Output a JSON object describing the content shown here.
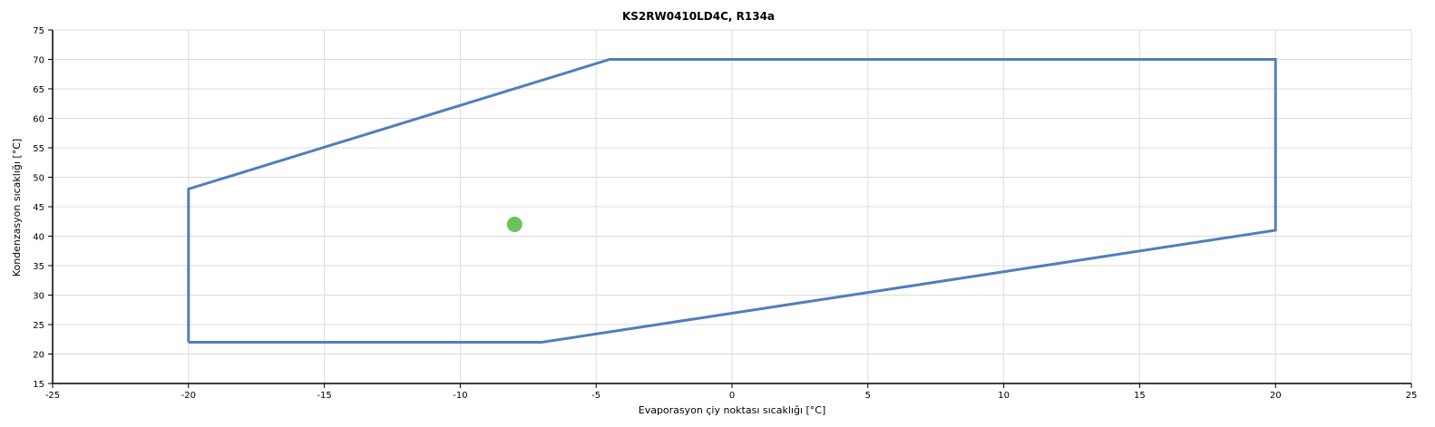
{
  "chart_data": {
    "type": "line",
    "title": "KS2RW0410LD4C, R134a",
    "xlabel": "Evaporasyon çiy noktası sıcaklığı [°C]",
    "ylabel": "Kondenzasyon sıcaklığı [°C]",
    "xlim": [
      -25,
      25
    ],
    "ylim": [
      15,
      75
    ],
    "xticks": [
      -25,
      -20,
      -15,
      -10,
      -5,
      0,
      5,
      10,
      15,
      20,
      25
    ],
    "yticks": [
      15,
      20,
      25,
      30,
      35,
      40,
      45,
      50,
      55,
      60,
      65,
      70,
      75
    ],
    "grid": true,
    "series": [
      {
        "kind": "envelope",
        "color": "#4f7fbc",
        "x": [
          -20,
          -20,
          -4.5,
          20,
          20,
          -7,
          -20
        ],
        "y": [
          22,
          48,
          70,
          70,
          41,
          22,
          22
        ]
      },
      {
        "kind": "point",
        "color": "#6cc25a",
        "x": [
          -8
        ],
        "y": [
          42
        ]
      }
    ]
  }
}
